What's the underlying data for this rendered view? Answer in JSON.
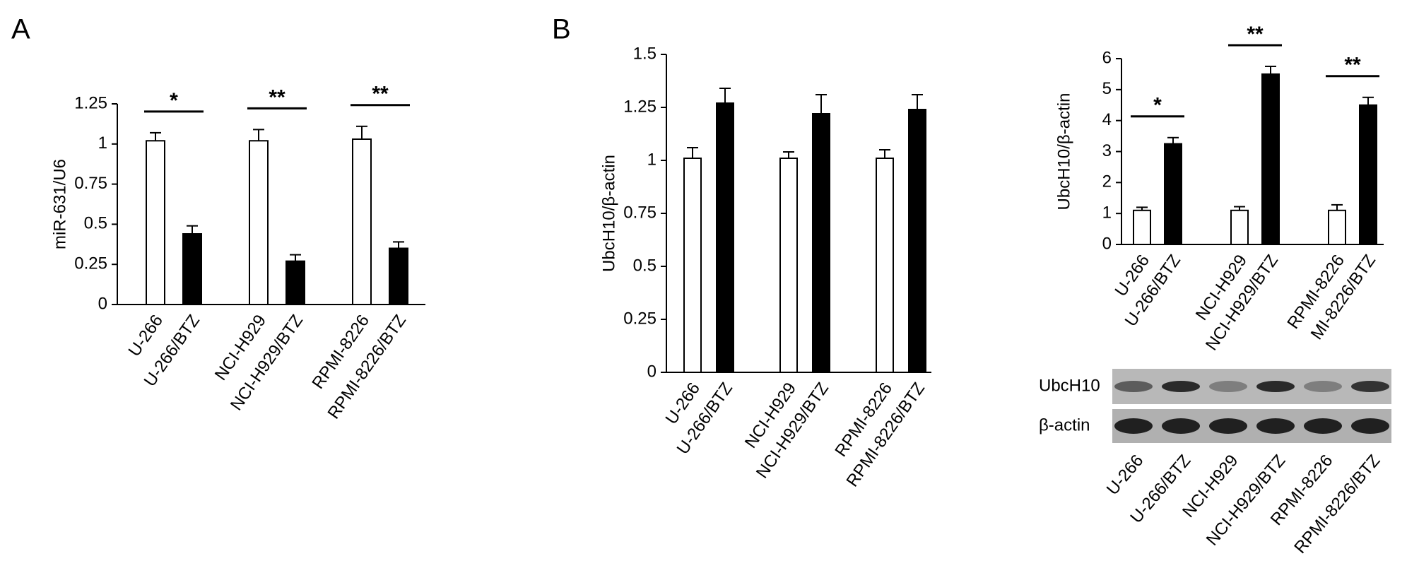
{
  "panels": [
    "A",
    "B"
  ],
  "chart_data": [
    {
      "type": "bar",
      "ylabel": "miR-631/U6",
      "categories": [
        "U-266",
        "U-266/BTZ",
        "NCI-H929",
        "NCI-H929/BTZ",
        "RPMI-8226",
        "RPMI-8226/BTZ"
      ],
      "values": [
        1.02,
        0.44,
        1.02,
        0.27,
        1.03,
        0.35
      ],
      "errors": [
        0.05,
        0.05,
        0.07,
        0.04,
        0.08,
        0.04
      ],
      "colors": [
        "#ffffff",
        "#000000",
        "#ffffff",
        "#000000",
        "#ffffff",
        "#000000"
      ],
      "ylim": [
        0,
        1.25
      ],
      "yticks": [
        0,
        0.25,
        0.5,
        0.75,
        1,
        1.25
      ],
      "annotations": [
        "*",
        "**",
        "**"
      ]
    },
    {
      "type": "bar",
      "ylabel": "UbcH10/β-actin",
      "categories": [
        "U-266",
        "U-266/BTZ",
        "NCI-H929",
        "NCI-H929/BTZ",
        "RPMI-8226",
        "RPMI-8226/BTZ"
      ],
      "values": [
        1.01,
        1.27,
        1.01,
        1.22,
        1.01,
        1.24
      ],
      "errors": [
        0.05,
        0.07,
        0.03,
        0.09,
        0.04,
        0.07
      ],
      "colors": [
        "#ffffff",
        "#000000",
        "#ffffff",
        "#000000",
        "#ffffff",
        "#000000"
      ],
      "ylim": [
        0,
        1.5
      ],
      "yticks": [
        0,
        0.25,
        0.5,
        0.75,
        1,
        1.25,
        1.5
      ]
    },
    {
      "type": "bar",
      "ylabel": "UbcH10/β-actin",
      "categories": [
        "U-266",
        "U-266/BTZ",
        "NCI-H929",
        "NCI-H929/BTZ",
        "RPMI-8226",
        "MI-8226/BTZ"
      ],
      "values": [
        1.1,
        3.25,
        1.1,
        5.5,
        1.1,
        4.5
      ],
      "errors": [
        0.1,
        0.2,
        0.12,
        0.25,
        0.18,
        0.25
      ],
      "colors": [
        "#ffffff",
        "#000000",
        "#ffffff",
        "#000000",
        "#ffffff",
        "#000000"
      ],
      "ylim": [
        0,
        6
      ],
      "yticks": [
        0,
        1,
        2,
        3,
        4,
        5,
        6
      ],
      "annotations": [
        "*",
        "**",
        "**"
      ]
    }
  ],
  "blot": {
    "rows": [
      "UbcH10",
      "β-actin"
    ],
    "lanes": [
      "U-266",
      "U-266/BTZ",
      "NCI-H929",
      "NCI-H929/BTZ",
      "RPMI-8226",
      "RPMI-8226/BTZ"
    ]
  }
}
